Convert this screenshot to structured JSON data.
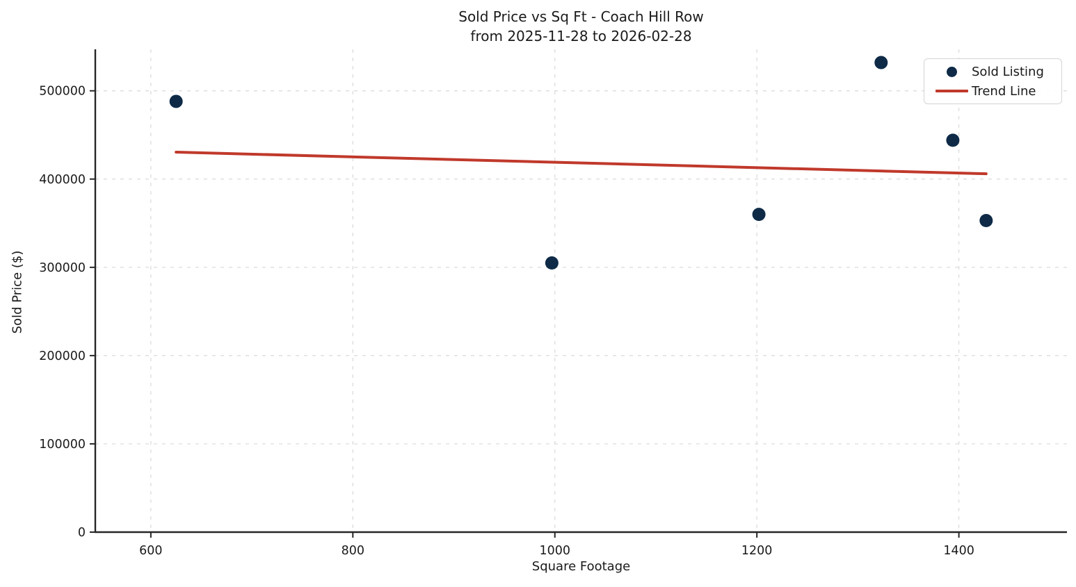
{
  "figure": {
    "title_line1": "Sold Price vs Sq Ft - Coach Hill Row",
    "title_line2": "from 2025-11-28 to 2026-02-28"
  },
  "chart_data": {
    "type": "scatter",
    "title": "Sold Price vs Sq Ft - Coach Hill Row\nfrom 2025-11-28 to 2026-02-28",
    "xlabel": "Square Footage",
    "ylabel": "Sold Price ($)",
    "xlim": [
      545,
      1507
    ],
    "ylim": [
      0,
      547000
    ],
    "xticks": [
      600,
      800,
      1000,
      1200,
      1400
    ],
    "yticks": [
      0,
      100000,
      200000,
      300000,
      400000,
      500000
    ],
    "grid": true,
    "grid_style": "dashed",
    "legend_position": "upper right",
    "series": [
      {
        "name": "Sold Listing",
        "kind": "scatter",
        "color": "#0e2a47",
        "points": [
          {
            "sqft": 625,
            "sold_price": 488000
          },
          {
            "sqft": 997,
            "sold_price": 305000
          },
          {
            "sqft": 1202,
            "sold_price": 360000
          },
          {
            "sqft": 1323,
            "sold_price": 532000
          },
          {
            "sqft": 1394,
            "sold_price": 444000
          },
          {
            "sqft": 1427,
            "sold_price": 353000
          }
        ]
      },
      {
        "name": "Trend Line",
        "kind": "line",
        "color": "#c0392b",
        "points": [
          {
            "sqft": 625,
            "sold_price": 430500
          },
          {
            "sqft": 1427,
            "sold_price": 406000
          }
        ]
      }
    ]
  },
  "legend": {
    "items": [
      {
        "label": "Sold Listing",
        "marker": "dot",
        "color": "#0e2a47"
      },
      {
        "label": "Trend Line",
        "marker": "line",
        "color": "#c0392b"
      }
    ]
  },
  "colors": {
    "scatter": "#0e2a47",
    "trend": "#c0392b",
    "grid": "#d9d9d9",
    "spine": "#262626",
    "text": "#1a1a1a",
    "background": "#ffffff"
  }
}
